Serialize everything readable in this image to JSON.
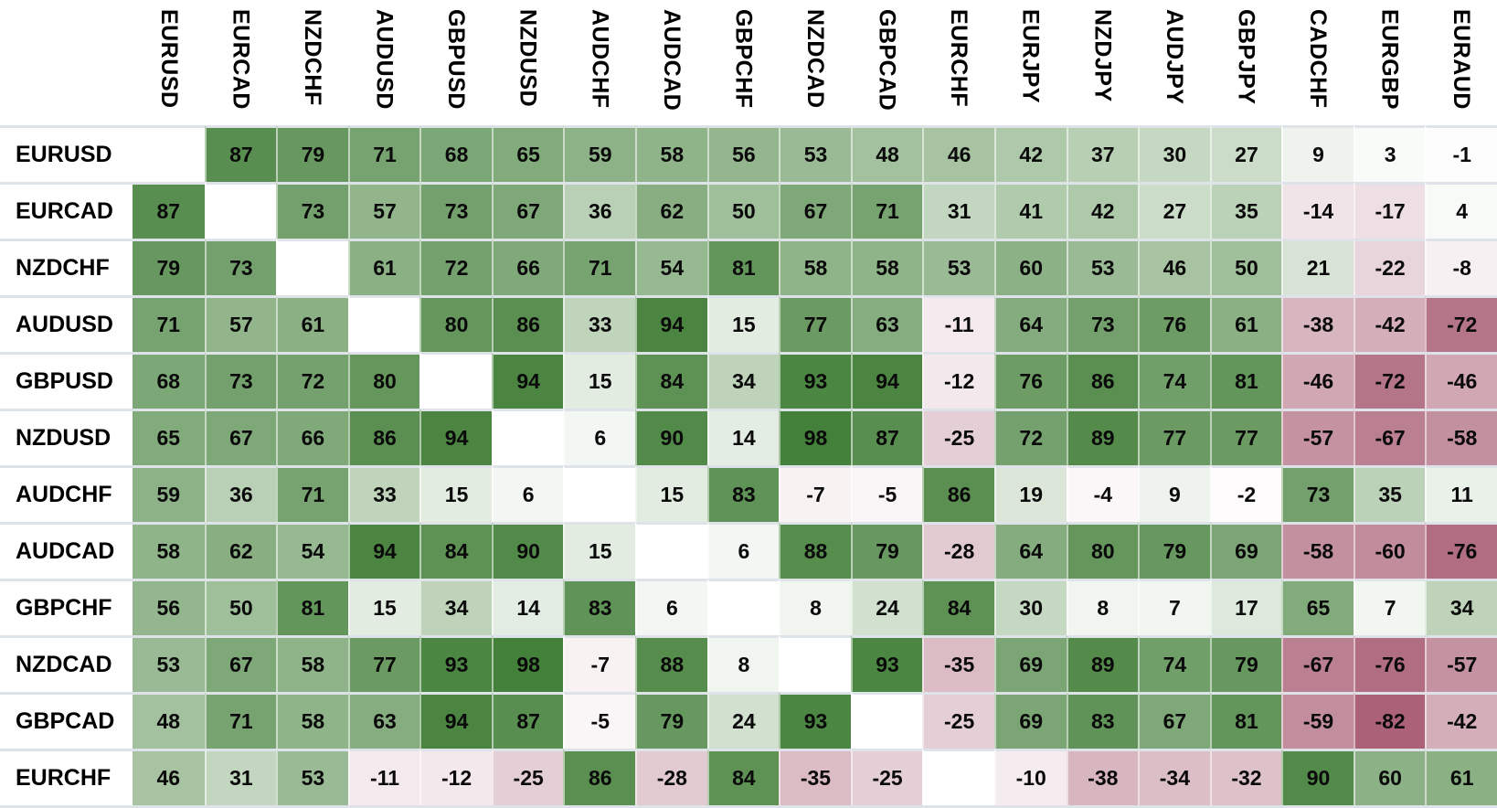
{
  "chart_data": {
    "type": "heatmap",
    "description": "Currency pair correlation matrix, values in percent from -100 to 100",
    "value_range": [
      -100,
      100
    ],
    "legend_position": "none",
    "grid": true,
    "colors": {
      "positive_max": "#3f7d35",
      "negative_max": "#98405a",
      "zero": "#ffffff",
      "row_separator": "#dde3e8",
      "cell_separator": "rgba(255,255,255,0.55)",
      "text": "#0a0a0a",
      "background": "#ffffff"
    },
    "columns": [
      "EURUSD",
      "EURCAD",
      "NZDCHF",
      "AUDUSD",
      "GBPUSD",
      "NZDUSD",
      "AUDCHF",
      "AUDCAD",
      "GBPCHF",
      "NZDCAD",
      "GBPCAD",
      "EURCHF",
      "EURJPY",
      "NZDJPY",
      "AUDJPY",
      "GBPJPY",
      "CADCHF",
      "EURGBP",
      "EURAUD"
    ],
    "rows": [
      "EURUSD",
      "EURCAD",
      "NZDCHF",
      "AUDUSD",
      "GBPUSD",
      "NZDUSD",
      "AUDCHF",
      "AUDCAD",
      "GBPCHF",
      "NZDCAD",
      "GBPCAD",
      "EURCHF"
    ],
    "values": [
      [
        null,
        87,
        79,
        71,
        68,
        65,
        59,
        58,
        56,
        53,
        48,
        46,
        42,
        37,
        30,
        27,
        9,
        3,
        -1
      ],
      [
        87,
        null,
        73,
        57,
        73,
        67,
        36,
        62,
        50,
        67,
        71,
        31,
        41,
        42,
        27,
        35,
        -14,
        -17,
        4
      ],
      [
        79,
        73,
        null,
        61,
        72,
        66,
        71,
        54,
        81,
        58,
        58,
        53,
        60,
        53,
        46,
        50,
        21,
        -22,
        -8
      ],
      [
        71,
        57,
        61,
        null,
        80,
        86,
        33,
        94,
        15,
        77,
        63,
        -11,
        64,
        73,
        76,
        61,
        -38,
        -42,
        -72
      ],
      [
        68,
        73,
        72,
        80,
        null,
        94,
        15,
        84,
        34,
        93,
        94,
        -12,
        76,
        86,
        74,
        81,
        -46,
        -72,
        -46
      ],
      [
        65,
        67,
        66,
        86,
        94,
        null,
        6,
        90,
        14,
        98,
        87,
        -25,
        72,
        89,
        77,
        77,
        -57,
        -67,
        -58
      ],
      [
        59,
        36,
        71,
        33,
        15,
        6,
        null,
        15,
        83,
        -7,
        -5,
        86,
        19,
        -4,
        9,
        -2,
        73,
        35,
        11
      ],
      [
        58,
        62,
        54,
        94,
        84,
        90,
        15,
        null,
        6,
        88,
        79,
        -28,
        64,
        80,
        79,
        69,
        -58,
        -60,
        -76
      ],
      [
        56,
        50,
        81,
        15,
        34,
        14,
        83,
        6,
        null,
        8,
        24,
        84,
        30,
        8,
        7,
        17,
        65,
        7,
        34
      ],
      [
        53,
        67,
        58,
        77,
        93,
        98,
        -7,
        88,
        8,
        null,
        93,
        -35,
        69,
        89,
        74,
        79,
        -67,
        -76,
        -57
      ],
      [
        48,
        71,
        58,
        63,
        94,
        87,
        -5,
        79,
        24,
        93,
        null,
        -25,
        69,
        83,
        67,
        81,
        -59,
        -82,
        -42
      ],
      [
        46,
        31,
        53,
        -11,
        -12,
        -25,
        86,
        -28,
        84,
        -35,
        -25,
        null,
        -10,
        -38,
        -34,
        -32,
        90,
        60,
        61
      ]
    ]
  }
}
